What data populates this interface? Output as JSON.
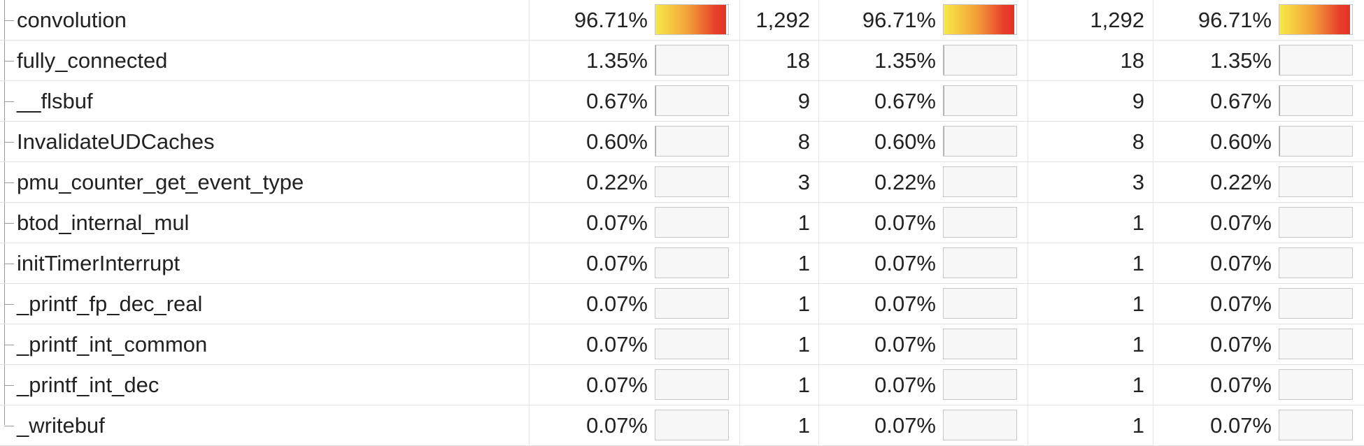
{
  "rows": [
    {
      "name": "convolution",
      "pct1": "96.71%",
      "count1": "1,292",
      "pct2": "96.71%",
      "count2": "1,292",
      "pct3": "96.71%",
      "fill": 0.9671
    },
    {
      "name": "fully_connected",
      "pct1": "1.35%",
      "count1": "18",
      "pct2": "1.35%",
      "count2": "18",
      "pct3": "1.35%",
      "fill": 0.0135
    },
    {
      "name": "__flsbuf",
      "pct1": "0.67%",
      "count1": "9",
      "pct2": "0.67%",
      "count2": "9",
      "pct3": "0.67%",
      "fill": 0.0067
    },
    {
      "name": "InvalidateUDCaches",
      "pct1": "0.60%",
      "count1": "8",
      "pct2": "0.60%",
      "count2": "8",
      "pct3": "0.60%",
      "fill": 0.006
    },
    {
      "name": "pmu_counter_get_event_type",
      "pct1": "0.22%",
      "count1": "3",
      "pct2": "0.22%",
      "count2": "3",
      "pct3": "0.22%",
      "fill": 0.0022
    },
    {
      "name": "btod_internal_mul",
      "pct1": "0.07%",
      "count1": "1",
      "pct2": "0.07%",
      "count2": "1",
      "pct3": "0.07%",
      "fill": 0.0007
    },
    {
      "name": "initTimerInterrupt",
      "pct1": "0.07%",
      "count1": "1",
      "pct2": "0.07%",
      "count2": "1",
      "pct3": "0.07%",
      "fill": 0.0007
    },
    {
      "name": "_printf_fp_dec_real",
      "pct1": "0.07%",
      "count1": "1",
      "pct2": "0.07%",
      "count2": "1",
      "pct3": "0.07%",
      "fill": 0.0007
    },
    {
      "name": "_printf_int_common",
      "pct1": "0.07%",
      "count1": "1",
      "pct2": "0.07%",
      "count2": "1",
      "pct3": "0.07%",
      "fill": 0.0007
    },
    {
      "name": "_printf_int_dec",
      "pct1": "0.07%",
      "count1": "1",
      "pct2": "0.07%",
      "count2": "1",
      "pct3": "0.07%",
      "fill": 0.0007
    },
    {
      "name": "_writebuf",
      "pct1": "0.07%",
      "count1": "1",
      "pct2": "0.07%",
      "count2": "1",
      "pct3": "0.07%",
      "fill": 0.0007
    }
  ],
  "colors": {
    "bar_start": "#f7e948",
    "bar_end": "#e23222",
    "grid": "#e2e2e2"
  }
}
